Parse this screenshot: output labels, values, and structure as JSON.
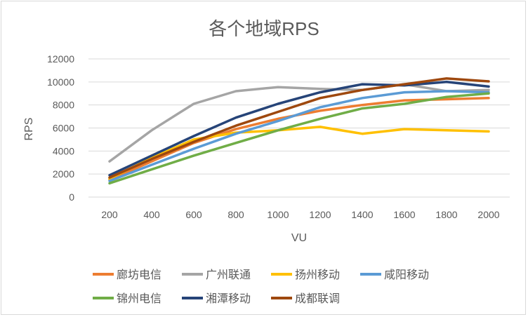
{
  "chart_data": {
    "type": "line",
    "title": "各个地域RPS",
    "xlabel": "VU",
    "ylabel": "RPS",
    "categories": [
      "200",
      "400",
      "600",
      "800",
      "1000",
      "1200",
      "1400",
      "1600",
      "1800",
      "2000"
    ],
    "ylim": [
      0,
      12000
    ],
    "yticks": [
      "0",
      "2000",
      "4000",
      "6000",
      "8000",
      "10000",
      "12000"
    ],
    "grid": true,
    "legend_position": "bottom",
    "series": [
      {
        "name": "廊坊电信",
        "color": "#ED7D31",
        "values": [
          1500,
          3100,
          4700,
          5900,
          6800,
          7500,
          8000,
          8400,
          8500,
          8600
        ]
      },
      {
        "name": "广州联通",
        "color": "#A5A5A5",
        "values": [
          3100,
          5800,
          8100,
          9200,
          9550,
          9400,
          9300,
          9800,
          9200,
          9300
        ]
      },
      {
        "name": "扬州移动",
        "color": "#FFC000",
        "values": [
          1600,
          3400,
          5000,
          5600,
          5800,
          6100,
          5500,
          5900,
          5800,
          5700
        ]
      },
      {
        "name": "咸阳移动",
        "color": "#5B9BD5",
        "values": [
          1400,
          2800,
          4200,
          5500,
          6600,
          7800,
          8600,
          9100,
          9200,
          9100
        ]
      },
      {
        "name": "锦州电信",
        "color": "#70AD47",
        "values": [
          1200,
          2400,
          3600,
          4700,
          5800,
          6800,
          7700,
          8100,
          8700,
          9000
        ]
      },
      {
        "name": "湘潭移动",
        "color": "#264478",
        "values": [
          1900,
          3600,
          5300,
          6900,
          8100,
          9100,
          9800,
          9700,
          10000,
          9600
        ]
      },
      {
        "name": "成都联调",
        "color": "#9E480E",
        "values": [
          1700,
          3300,
          4800,
          6200,
          7400,
          8600,
          9300,
          9800,
          10300,
          10050
        ]
      }
    ]
  }
}
